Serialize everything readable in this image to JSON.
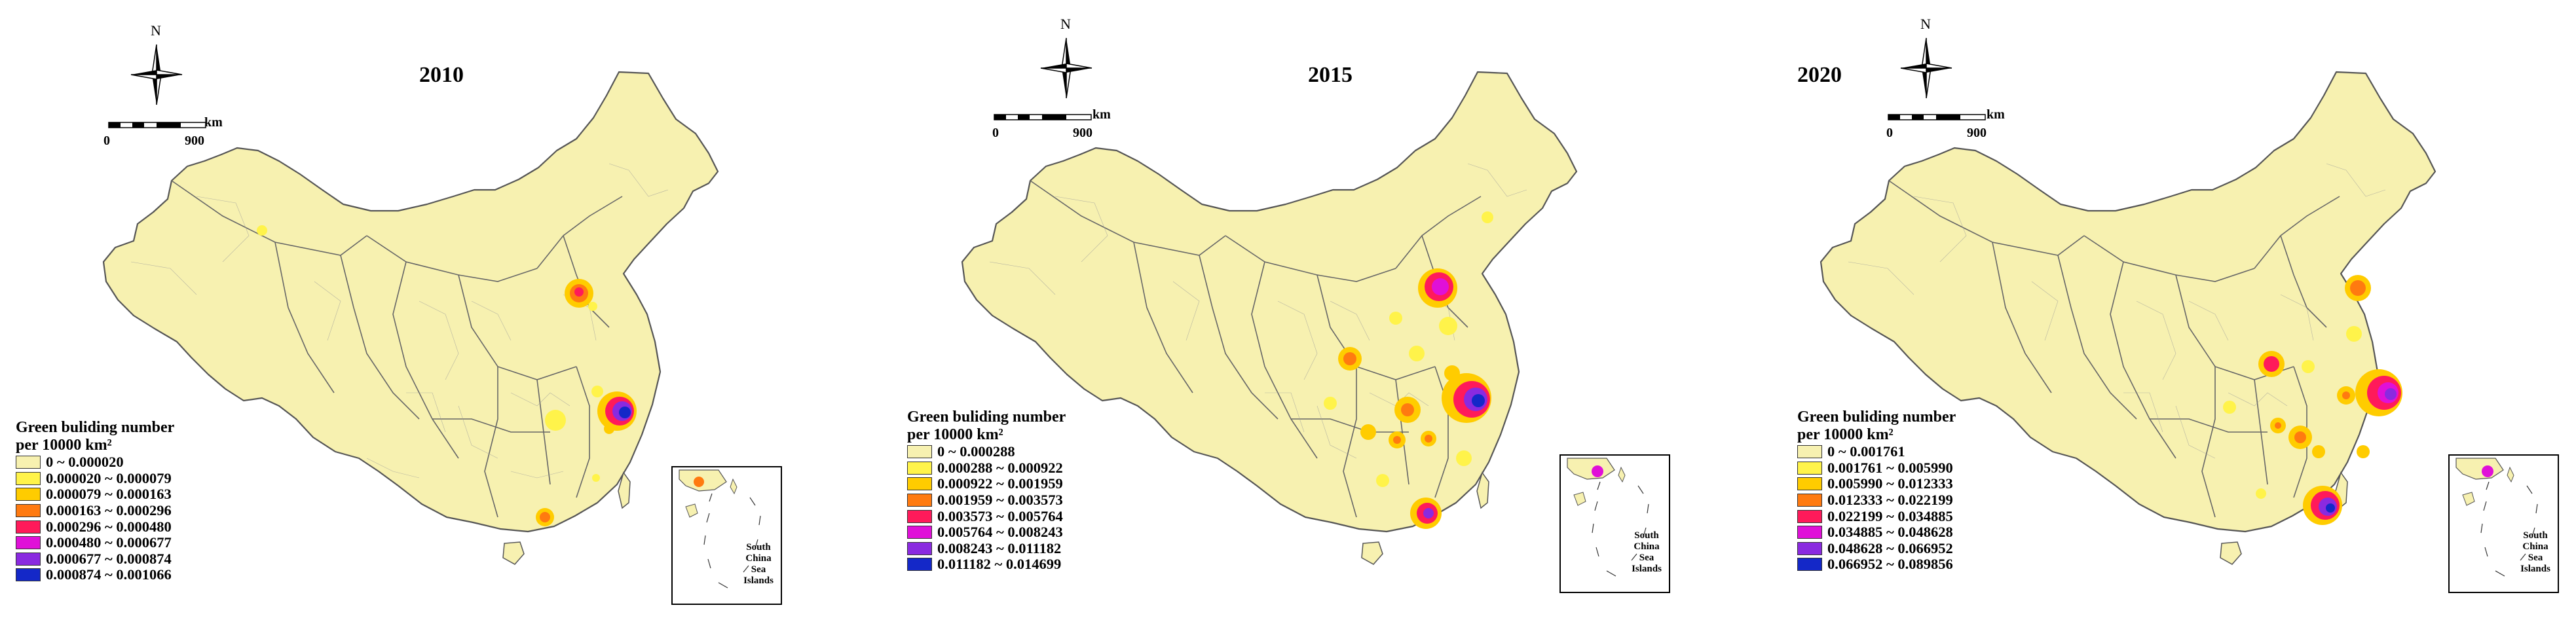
{
  "compass_label": "N",
  "scale": {
    "unit": "km",
    "min": "0",
    "max": "900"
  },
  "inset_label": [
    "South",
    "China",
    "Sea",
    "Islands"
  ],
  "legend_title": [
    "Green buliding number",
    "per 10000 km²"
  ],
  "legend_colors": [
    "#f7f1b0",
    "#fff34a",
    "#ffcc00",
    "#ff7a10",
    "#ff1a5a",
    "#e010d8",
    "#8a2ae0",
    "#1428c8"
  ],
  "base_fill": "#f7f1b0",
  "panels": [
    {
      "title": "2010",
      "classes": [
        "0 ~ 0.000020",
        "0.000020 ~ 0.000079",
        "0.000079 ~ 0.000163",
        "0.000163 ~ 0.000296",
        "0.000296 ~ 0.000480",
        "0.000480 ~ 0.000677",
        "0.000677 ~ 0.000874",
        "0.000874 ~ 0.001066"
      ]
    },
    {
      "title": "2015",
      "classes": [
        "0 ~ 0.000288",
        "0.000288 ~ 0.000922",
        "0.000922 ~ 0.001959",
        "0.001959 ~ 0.003573",
        "0.003573 ~ 0.005764",
        "0.005764 ~ 0.008243",
        "0.008243 ~ 0.011182",
        "0.011182 ~ 0.014699"
      ]
    },
    {
      "title": "2020",
      "classes": [
        "0 ~ 0.001761",
        "0.001761 ~ 0.005990",
        "0.005990 ~ 0.012333",
        "0.012333 ~ 0.022199",
        "0.022199 ~ 0.034885",
        "0.034885 ~ 0.048628",
        "0.048628 ~ 0.066952",
        "0.066952 ~ 0.089856"
      ]
    }
  ]
}
